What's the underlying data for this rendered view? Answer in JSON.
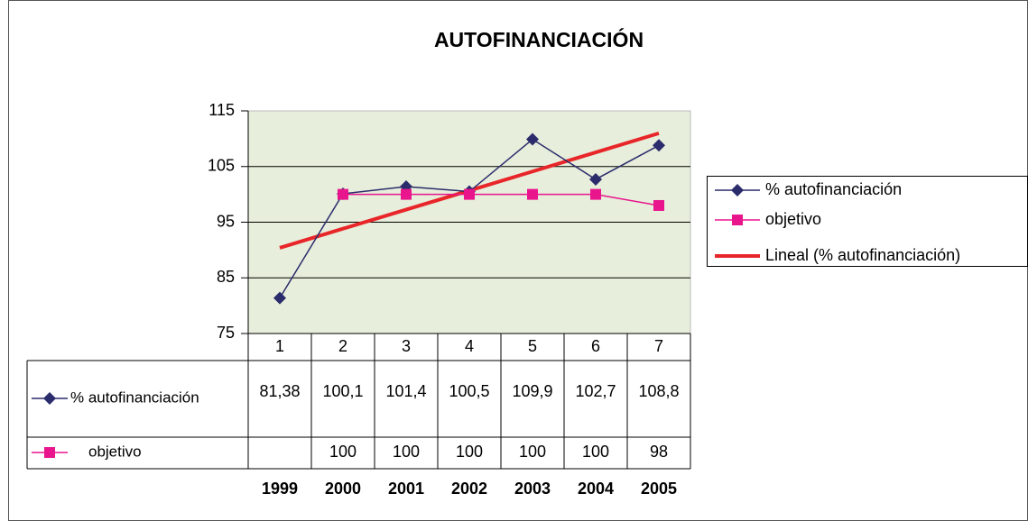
{
  "chart_data": {
    "type": "line",
    "title": "AUTOFINANCIACIÓN",
    "categories": [
      "1",
      "2",
      "3",
      "4",
      "5",
      "6",
      "7"
    ],
    "years": [
      "1999",
      "2000",
      "2001",
      "2002",
      "2003",
      "2004",
      "2005"
    ],
    "series": [
      {
        "name": "% autofinanciación",
        "color": "#2b2c6c",
        "marker": "diamond",
        "values": [
          81.38,
          100.1,
          101.4,
          100.5,
          109.9,
          102.7,
          108.8
        ],
        "value_labels": [
          "81,38",
          "100,1",
          "101,4",
          "100,5",
          "109,9",
          "102,7",
          "108,8"
        ]
      },
      {
        "name": "objetivo",
        "color": "#e8158d",
        "marker": "square",
        "values": [
          null,
          100,
          100,
          100,
          100,
          100,
          98
        ]
      },
      {
        "name": "Lineal (% autofinanciación)",
        "color": "#e8262a",
        "marker": "none",
        "values": [
          90.4,
          93.83,
          97.26,
          100.68,
          104.11,
          107.54,
          110.97
        ]
      }
    ],
    "ylim": [
      75,
      115
    ],
    "yticks": [
      75,
      85,
      95,
      105,
      115
    ],
    "grid": true,
    "legend": "right",
    "plot_background": "#e7eedb"
  }
}
